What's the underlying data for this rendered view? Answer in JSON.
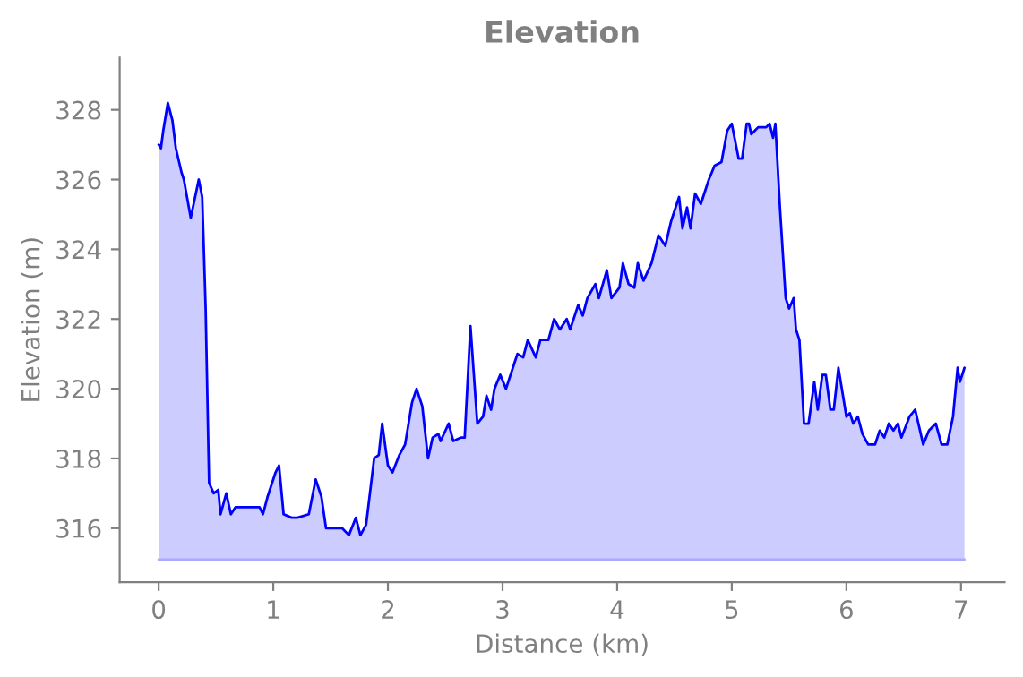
{
  "chart_data": {
    "type": "area",
    "title": "Elevation",
    "xlabel": "Distance (km)",
    "ylabel": "Elevation (m)",
    "ref_lines": [
      {
        "axis": "y",
        "value": 315.1,
        "color": "#aaaaff"
      }
    ],
    "xlim": [
      -0.34,
      7.38
    ],
    "xticks": [
      0,
      1,
      2,
      3,
      4,
      5,
      6,
      7
    ],
    "ylim": [
      314.45,
      329.5
    ],
    "yticks": [
      316,
      318,
      320,
      322,
      324,
      326,
      328
    ],
    "grid": false,
    "legend": false,
    "series": [
      {
        "color": "#0000ff",
        "x": [
          0,
          0.02,
          0.04,
          0.08,
          0.12,
          0.15,
          0.2,
          0.22,
          0.28,
          0.35,
          0.38,
          0.41,
          0.44,
          0.48,
          0.52,
          0.54,
          0.59,
          0.63,
          0.67,
          0.88,
          0.91,
          0.95,
          1.02,
          1.05,
          1.09,
          1.16,
          1.21,
          1.31,
          1.37,
          1.42,
          1.46,
          1.6,
          1.66,
          1.72,
          1.76,
          1.81,
          1.88,
          1.92,
          1.95,
          2.0,
          2.04,
          2.1,
          2.15,
          2.21,
          2.25,
          2.3,
          2.35,
          2.39,
          2.44,
          2.46,
          2.53,
          2.57,
          2.64,
          2.67,
          2.72,
          2.78,
          2.83,
          2.86,
          2.9,
          2.93,
          2.98,
          3.03,
          3.09,
          3.13,
          3.18,
          3.22,
          3.29,
          3.33,
          3.4,
          3.45,
          3.5,
          3.56,
          3.59,
          3.66,
          3.7,
          3.74,
          3.81,
          3.84,
          3.91,
          3.95,
          4.02,
          4.05,
          4.1,
          4.15,
          4.18,
          4.23,
          4.3,
          4.36,
          4.42,
          4.47,
          4.54,
          4.57,
          4.61,
          4.64,
          4.68,
          4.73,
          4.8,
          4.85,
          4.91,
          4.96,
          5.0,
          5.06,
          5.09,
          5.13,
          5.15,
          5.17,
          5.23,
          5.3,
          5.33,
          5.36,
          5.38,
          5.42,
          5.47,
          5.5,
          5.54,
          5.56,
          5.59,
          5.63,
          5.67,
          5.72,
          5.75,
          5.79,
          5.82,
          5.86,
          5.89,
          5.93,
          5.96,
          6.0,
          6.03,
          6.06,
          6.1,
          6.14,
          6.19,
          6.25,
          6.29,
          6.33,
          6.37,
          6.41,
          6.45,
          6.48,
          6.55,
          6.6,
          6.67,
          6.72,
          6.78,
          6.83,
          6.88,
          6.93,
          6.97,
          6.99,
          7.03
        ],
        "values": [
          327.0,
          326.9,
          327.4,
          328.2,
          327.7,
          326.9,
          326.2,
          326.0,
          324.9,
          326.0,
          325.5,
          322.3,
          317.3,
          317.0,
          317.1,
          316.4,
          317.0,
          316.4,
          316.6,
          316.6,
          316.4,
          316.9,
          317.6,
          317.8,
          316.4,
          316.3,
          316.3,
          316.4,
          317.4,
          316.9,
          316.0,
          316.0,
          315.8,
          316.3,
          315.8,
          316.1,
          318.0,
          318.1,
          319.0,
          317.8,
          317.6,
          318.1,
          318.4,
          319.6,
          320.0,
          319.5,
          318.0,
          318.6,
          318.7,
          318.5,
          319.0,
          318.5,
          318.6,
          318.6,
          321.8,
          319.0,
          319.2,
          319.8,
          319.4,
          320.0,
          320.4,
          320.0,
          320.6,
          321.0,
          320.9,
          321.4,
          320.9,
          321.4,
          321.4,
          322.0,
          321.7,
          322.0,
          321.7,
          322.4,
          322.1,
          322.6,
          323.0,
          322.6,
          323.4,
          322.6,
          322.9,
          323.6,
          323.0,
          322.9,
          323.6,
          323.1,
          323.6,
          324.4,
          324.1,
          324.8,
          325.5,
          324.6,
          325.2,
          324.6,
          325.6,
          325.3,
          326.0,
          326.4,
          326.5,
          327.4,
          327.6,
          326.6,
          326.6,
          327.6,
          327.6,
          327.3,
          327.5,
          327.5,
          327.6,
          327.2,
          327.6,
          325.2,
          322.6,
          322.3,
          322.6,
          321.7,
          321.4,
          319.0,
          319.0,
          320.2,
          319.4,
          320.4,
          320.4,
          319.4,
          319.4,
          320.6,
          320.0,
          319.2,
          319.3,
          319.0,
          319.2,
          318.7,
          318.4,
          318.4,
          318.8,
          318.6,
          319.0,
          318.8,
          319.0,
          318.6,
          319.2,
          319.4,
          318.4,
          318.8,
          319.0,
          318.4,
          318.4,
          319.2,
          320.6,
          320.2,
          320.6
        ]
      }
    ]
  }
}
